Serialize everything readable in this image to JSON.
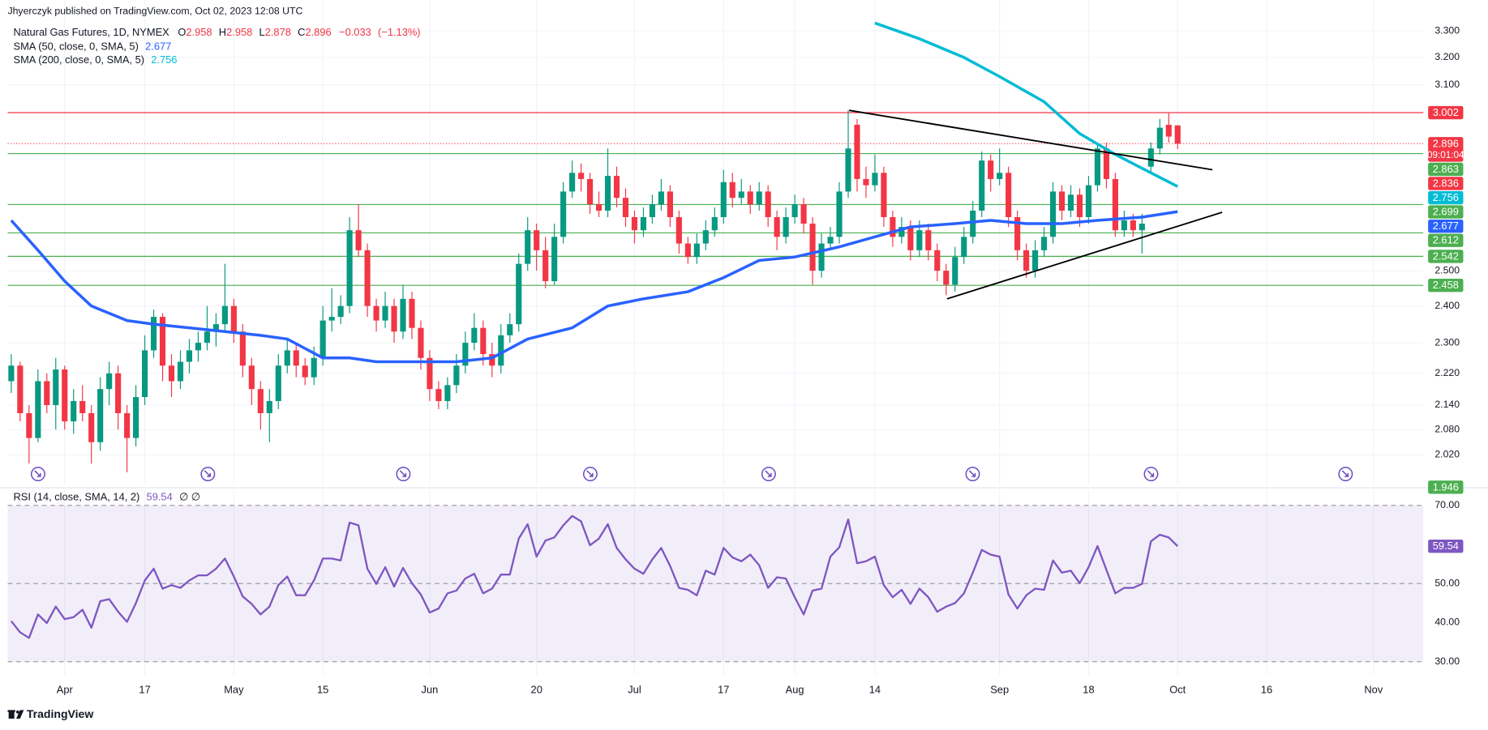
{
  "chart_data": {
    "type": "candlestick",
    "header": "Jhyerczyk published on TradingView.com, Oct 02, 2023 12:08 UTC",
    "title": "Natural Gas Futures, 1D, NYMEX",
    "ohlc_labels": [
      "O",
      "H",
      "L",
      "C"
    ],
    "change": {
      "value": -0.033,
      "label": "−0.033"
    },
    "change_pct": {
      "value": -1.13,
      "label": "(−1.13%)"
    },
    "countdown": "09:01:04",
    "brand": "TradingView",
    "up_color": "#089981",
    "down_color": "#f23645",
    "log": true,
    "grid": true,
    "xlim": [
      -0.4,
      158.6
    ],
    "ylim": [
      1.95,
      3.42
    ],
    "xticks": [
      {
        "value": 6,
        "label": "Apr"
      },
      {
        "value": 15,
        "label": "17"
      },
      {
        "value": 25,
        "label": "May"
      },
      {
        "value": 35,
        "label": "15"
      },
      {
        "value": 47,
        "label": "Jun"
      },
      {
        "value": 59,
        "label": "20"
      },
      {
        "value": 70,
        "label": "Jul"
      },
      {
        "value": 80,
        "label": "17"
      },
      {
        "value": 88,
        "label": "Aug"
      },
      {
        "value": 97,
        "label": "14"
      },
      {
        "value": 111,
        "label": "Sep"
      },
      {
        "value": 121,
        "label": "18"
      },
      {
        "value": 131,
        "label": "Oct"
      },
      {
        "value": 141,
        "label": "16"
      },
      {
        "value": 153,
        "label": "Nov"
      }
    ],
    "yticks": [
      {
        "value": 3.3,
        "label": "3.300"
      },
      {
        "value": 3.2,
        "label": "3.200"
      },
      {
        "value": 3.1,
        "label": "3.100"
      },
      {
        "value": 2.5,
        "label": "2.500"
      },
      {
        "value": 2.4,
        "label": "2.400"
      },
      {
        "value": 2.3,
        "label": "2.300"
      },
      {
        "value": 2.22,
        "label": "2.220"
      },
      {
        "value": 2.14,
        "label": "2.140"
      },
      {
        "value": 2.08,
        "label": "2.080"
      },
      {
        "value": 2.02,
        "label": "2.020"
      }
    ],
    "ohlc": [
      [
        2.2,
        2.27,
        2.17,
        2.24
      ],
      [
        2.24,
        2.25,
        2.1,
        2.12
      ],
      [
        2.12,
        2.14,
        2.0,
        2.06
      ],
      [
        2.06,
        2.23,
        2.05,
        2.2
      ],
      [
        2.2,
        2.22,
        2.12,
        2.14
      ],
      [
        2.14,
        2.26,
        2.08,
        2.23
      ],
      [
        2.23,
        2.24,
        2.08,
        2.1
      ],
      [
        2.1,
        2.18,
        2.07,
        2.15
      ],
      [
        2.15,
        2.19,
        2.1,
        2.12
      ],
      [
        2.12,
        2.14,
        2.0,
        2.05
      ],
      [
        2.05,
        2.21,
        2.03,
        2.18
      ],
      [
        2.18,
        2.25,
        2.14,
        2.22
      ],
      [
        2.22,
        2.24,
        2.08,
        2.12
      ],
      [
        2.12,
        2.14,
        1.98,
        2.06
      ],
      [
        2.06,
        2.19,
        2.04,
        2.16
      ],
      [
        2.16,
        2.32,
        2.14,
        2.28
      ],
      [
        2.28,
        2.39,
        2.26,
        2.37
      ],
      [
        2.37,
        2.38,
        2.2,
        2.24
      ],
      [
        2.24,
        2.27,
        2.16,
        2.2
      ],
      [
        2.2,
        2.28,
        2.18,
        2.25
      ],
      [
        2.25,
        2.31,
        2.22,
        2.28
      ],
      [
        2.28,
        2.33,
        2.25,
        2.3
      ],
      [
        2.3,
        2.4,
        2.28,
        2.33
      ],
      [
        2.33,
        2.38,
        2.29,
        2.35
      ],
      [
        2.35,
        2.52,
        2.33,
        2.4
      ],
      [
        2.4,
        2.42,
        2.3,
        2.33
      ],
      [
        2.33,
        2.35,
        2.21,
        2.24
      ],
      [
        2.24,
        2.26,
        2.14,
        2.18
      ],
      [
        2.18,
        2.2,
        2.08,
        2.12
      ],
      [
        2.12,
        2.18,
        2.05,
        2.15
      ],
      [
        2.15,
        2.27,
        2.13,
        2.24
      ],
      [
        2.24,
        2.31,
        2.22,
        2.28
      ],
      [
        2.28,
        2.3,
        2.21,
        2.24
      ],
      [
        2.24,
        2.26,
        2.19,
        2.21
      ],
      [
        2.21,
        2.29,
        2.19,
        2.26
      ],
      [
        2.26,
        2.4,
        2.24,
        2.36
      ],
      [
        2.36,
        2.45,
        2.33,
        2.37
      ],
      [
        2.37,
        2.43,
        2.35,
        2.4
      ],
      [
        2.4,
        2.66,
        2.38,
        2.62
      ],
      [
        2.62,
        2.7,
        2.54,
        2.56
      ],
      [
        2.56,
        2.58,
        2.37,
        2.4
      ],
      [
        2.4,
        2.42,
        2.33,
        2.36
      ],
      [
        2.36,
        2.44,
        2.34,
        2.4
      ],
      [
        2.4,
        2.42,
        2.3,
        2.33
      ],
      [
        2.33,
        2.46,
        2.31,
        2.42
      ],
      [
        2.42,
        2.44,
        2.31,
        2.34
      ],
      [
        2.34,
        2.36,
        2.23,
        2.26
      ],
      [
        2.26,
        2.28,
        2.15,
        2.18
      ],
      [
        2.18,
        2.2,
        2.13,
        2.15
      ],
      [
        2.15,
        2.21,
        2.13,
        2.19
      ],
      [
        2.19,
        2.27,
        2.17,
        2.24
      ],
      [
        2.24,
        2.33,
        2.22,
        2.3
      ],
      [
        2.3,
        2.38,
        2.28,
        2.34
      ],
      [
        2.34,
        2.36,
        2.24,
        2.27
      ],
      [
        2.27,
        2.3,
        2.21,
        2.24
      ],
      [
        2.24,
        2.35,
        2.22,
        2.32
      ],
      [
        2.32,
        2.38,
        2.3,
        2.35
      ],
      [
        2.35,
        2.55,
        2.33,
        2.52
      ],
      [
        2.52,
        2.66,
        2.5,
        2.62
      ],
      [
        2.62,
        2.64,
        2.5,
        2.56
      ],
      [
        2.56,
        2.6,
        2.45,
        2.47
      ],
      [
        2.47,
        2.64,
        2.46,
        2.6
      ],
      [
        2.6,
        2.77,
        2.58,
        2.74
      ],
      [
        2.74,
        2.84,
        2.72,
        2.8
      ],
      [
        2.8,
        2.83,
        2.74,
        2.78
      ],
      [
        2.78,
        2.8,
        2.67,
        2.7
      ],
      [
        2.7,
        2.74,
        2.66,
        2.68
      ],
      [
        2.68,
        2.88,
        2.66,
        2.79
      ],
      [
        2.79,
        2.82,
        2.69,
        2.72
      ],
      [
        2.72,
        2.75,
        2.63,
        2.66
      ],
      [
        2.66,
        2.68,
        2.58,
        2.62
      ],
      [
        2.62,
        2.69,
        2.6,
        2.66
      ],
      [
        2.66,
        2.73,
        2.64,
        2.7
      ],
      [
        2.7,
        2.78,
        2.68,
        2.74
      ],
      [
        2.74,
        2.76,
        2.63,
        2.66
      ],
      [
        2.66,
        2.68,
        2.55,
        2.58
      ],
      [
        2.58,
        2.6,
        2.52,
        2.54
      ],
      [
        2.54,
        2.61,
        2.52,
        2.58
      ],
      [
        2.58,
        2.65,
        2.56,
        2.62
      ],
      [
        2.62,
        2.69,
        2.6,
        2.66
      ],
      [
        2.66,
        2.81,
        2.64,
        2.77
      ],
      [
        2.77,
        2.8,
        2.69,
        2.72
      ],
      [
        2.72,
        2.78,
        2.7,
        2.74
      ],
      [
        2.74,
        2.76,
        2.67,
        2.7
      ],
      [
        2.7,
        2.77,
        2.68,
        2.74
      ],
      [
        2.74,
        2.76,
        2.63,
        2.66
      ],
      [
        2.66,
        2.68,
        2.56,
        2.6
      ],
      [
        2.6,
        2.69,
        2.58,
        2.66
      ],
      [
        2.66,
        2.73,
        2.64,
        2.7
      ],
      [
        2.7,
        2.72,
        2.61,
        2.64
      ],
      [
        2.64,
        2.66,
        2.46,
        2.5
      ],
      [
        2.5,
        2.61,
        2.48,
        2.58
      ],
      [
        2.58,
        2.63,
        2.56,
        2.6
      ],
      [
        2.6,
        2.77,
        2.58,
        2.74
      ],
      [
        2.74,
        3.01,
        2.72,
        2.88
      ],
      [
        2.96,
        2.98,
        2.74,
        2.78
      ],
      [
        2.78,
        2.82,
        2.72,
        2.76
      ],
      [
        2.76,
        2.86,
        2.74,
        2.8
      ],
      [
        2.8,
        2.82,
        2.63,
        2.66
      ],
      [
        2.66,
        2.68,
        2.57,
        2.6
      ],
      [
        2.6,
        2.66,
        2.58,
        2.63
      ],
      [
        2.63,
        2.65,
        2.53,
        2.56
      ],
      [
        2.56,
        2.65,
        2.54,
        2.62
      ],
      [
        2.62,
        2.64,
        2.53,
        2.56
      ],
      [
        2.56,
        2.58,
        2.47,
        2.5
      ],
      [
        2.5,
        2.52,
        2.43,
        2.46
      ],
      [
        2.46,
        2.57,
        2.44,
        2.54
      ],
      [
        2.54,
        2.63,
        2.52,
        2.6
      ],
      [
        2.6,
        2.71,
        2.58,
        2.68
      ],
      [
        2.68,
        2.87,
        2.66,
        2.84
      ],
      [
        2.84,
        2.86,
        2.74,
        2.78
      ],
      [
        2.78,
        2.88,
        2.76,
        2.8
      ],
      [
        2.8,
        2.82,
        2.63,
        2.66
      ],
      [
        2.66,
        2.68,
        2.53,
        2.56
      ],
      [
        2.56,
        2.58,
        2.48,
        2.5
      ],
      [
        2.5,
        2.59,
        2.48,
        2.56
      ],
      [
        2.56,
        2.63,
        2.54,
        2.6
      ],
      [
        2.6,
        2.77,
        2.58,
        2.74
      ],
      [
        2.74,
        2.76,
        2.65,
        2.68
      ],
      [
        2.68,
        2.76,
        2.66,
        2.73
      ],
      [
        2.73,
        2.75,
        2.63,
        2.66
      ],
      [
        2.66,
        2.79,
        2.64,
        2.76
      ],
      [
        2.76,
        2.89,
        2.74,
        2.88
      ],
      [
        2.88,
        2.9,
        2.75,
        2.78
      ],
      [
        2.78,
        2.8,
        2.6,
        2.62
      ],
      [
        2.62,
        2.68,
        2.6,
        2.65
      ],
      [
        2.65,
        2.67,
        2.6,
        2.62
      ],
      [
        2.62,
        2.67,
        2.55,
        2.64
      ],
      [
        2.82,
        2.9,
        2.8,
        2.88
      ],
      [
        2.88,
        2.98,
        2.86,
        2.95
      ],
      [
        2.96,
        3.0,
        2.9,
        2.92
      ],
      [
        2.958,
        2.958,
        2.878,
        2.896
      ]
    ],
    "series": [
      {
        "name": "SMA (50, close, 0, SMA, 5)",
        "color": "#2962ff",
        "x": [
          0,
          3,
          6,
          9,
          13,
          16,
          20,
          24,
          28,
          31,
          35,
          38,
          41,
          46,
          50,
          54,
          58,
          63,
          67,
          71,
          76,
          80,
          84,
          88,
          93,
          97,
          101,
          106,
          110,
          114,
          118,
          122,
          127,
          131
        ],
        "values": [
          2.65,
          2.56,
          2.47,
          2.4,
          2.36,
          2.35,
          2.34,
          2.33,
          2.32,
          2.31,
          2.26,
          2.26,
          2.25,
          2.25,
          2.25,
          2.26,
          2.31,
          2.34,
          2.4,
          2.42,
          2.44,
          2.48,
          2.53,
          2.54,
          2.57,
          2.6,
          2.63,
          2.64,
          2.65,
          2.64,
          2.64,
          2.65,
          2.66,
          2.677
        ]
      },
      {
        "name": "SMA (200, close, 0, SMA, 5)",
        "color": "#00bcd4",
        "x": [
          97,
          102,
          107,
          111,
          116,
          120,
          124,
          128,
          131
        ],
        "values": [
          3.33,
          3.27,
          3.2,
          3.13,
          3.04,
          2.93,
          2.86,
          2.8,
          2.756
        ]
      }
    ],
    "trend_lines": [
      {
        "x": [
          94.1,
          134.9
        ],
        "y": [
          3.01,
          2.81
        ],
        "color": "#000000"
      },
      {
        "x": [
          105.1,
          136.0
        ],
        "y": [
          2.42,
          2.675
        ],
        "color": "#000000"
      }
    ],
    "price_labels": [
      {
        "value": 3.002,
        "color": "#f23645",
        "line": "solid"
      },
      {
        "value": 2.863,
        "color": "#4caf50",
        "line": "solid"
      },
      {
        "value": 2.836,
        "color": "#f23645"
      },
      {
        "value": 2.699,
        "color": "#4caf50",
        "line": "solid"
      },
      {
        "value": 2.612,
        "color": "#4caf50",
        "line": "solid"
      },
      {
        "value": 2.542,
        "color": "#4caf50",
        "line": "solid"
      },
      {
        "value": 2.458,
        "color": "#4caf50",
        "line": "solid"
      },
      {
        "value": 1.946,
        "color": "#4caf50"
      }
    ],
    "rsi": {
      "name": "RSI (14, close, SMA, 14, 2)",
      "extra": "∅ ∅",
      "color": "#7e57c2",
      "ylim": [
        26.6,
        73.9
      ],
      "bands": [
        70,
        50,
        30
      ],
      "yticks": [
        {
          "value": 70,
          "label": "70.00"
        },
        {
          "value": 50,
          "label": "50.00"
        },
        {
          "value": 40,
          "label": "40.00"
        },
        {
          "value": 30,
          "label": "30.00"
        }
      ],
      "values": [
        40.4,
        37.5,
        36.1,
        42.1,
        39.9,
        44.1,
        40.9,
        41.4,
        43.3,
        38.7,
        45.5,
        46.0,
        42.8,
        40.2,
        45.0,
        50.8,
        53.8,
        48.7,
        49.6,
        48.9,
        50.8,
        52.1,
        52.1,
        53.8,
        56.4,
        51.8,
        46.7,
        44.8,
        42.1,
        44.1,
        49.6,
        51.8,
        47.0,
        47.0,
        50.8,
        56.4,
        56.4,
        55.9,
        65.6,
        64.9,
        53.8,
        49.9,
        54.2,
        49.2,
        54.0,
        50.1,
        47.2,
        42.6,
        43.6,
        47.5,
        48.2,
        51.3,
        52.5,
        47.5,
        48.7,
        52.3,
        52.3,
        61.5,
        65.2,
        56.9,
        61.0,
        61.8,
        64.9,
        67.3,
        65.9,
        59.8,
        61.5,
        65.2,
        59.1,
        56.2,
        53.8,
        52.5,
        56.2,
        59.1,
        54.5,
        48.9,
        48.4,
        47.0,
        53.3,
        52.3,
        59.1,
        56.7,
        55.7,
        57.4,
        54.7,
        48.9,
        51.6,
        51.3,
        46.5,
        42.1,
        48.2,
        48.7,
        56.9,
        59.3,
        66.4,
        55.2,
        55.7,
        56.9,
        49.6,
        46.5,
        48.4,
        44.8,
        48.7,
        46.5,
        42.8,
        44.1,
        45.0,
        47.5,
        52.8,
        58.6,
        57.4,
        56.9,
        47.2,
        43.6,
        47.0,
        48.7,
        48.4,
        55.9,
        52.8,
        53.3,
        50.1,
        54.2,
        59.6,
        53.5,
        47.5,
        48.9,
        48.9,
        49.9,
        60.8,
        62.5,
        61.8,
        59.54
      ]
    }
  }
}
